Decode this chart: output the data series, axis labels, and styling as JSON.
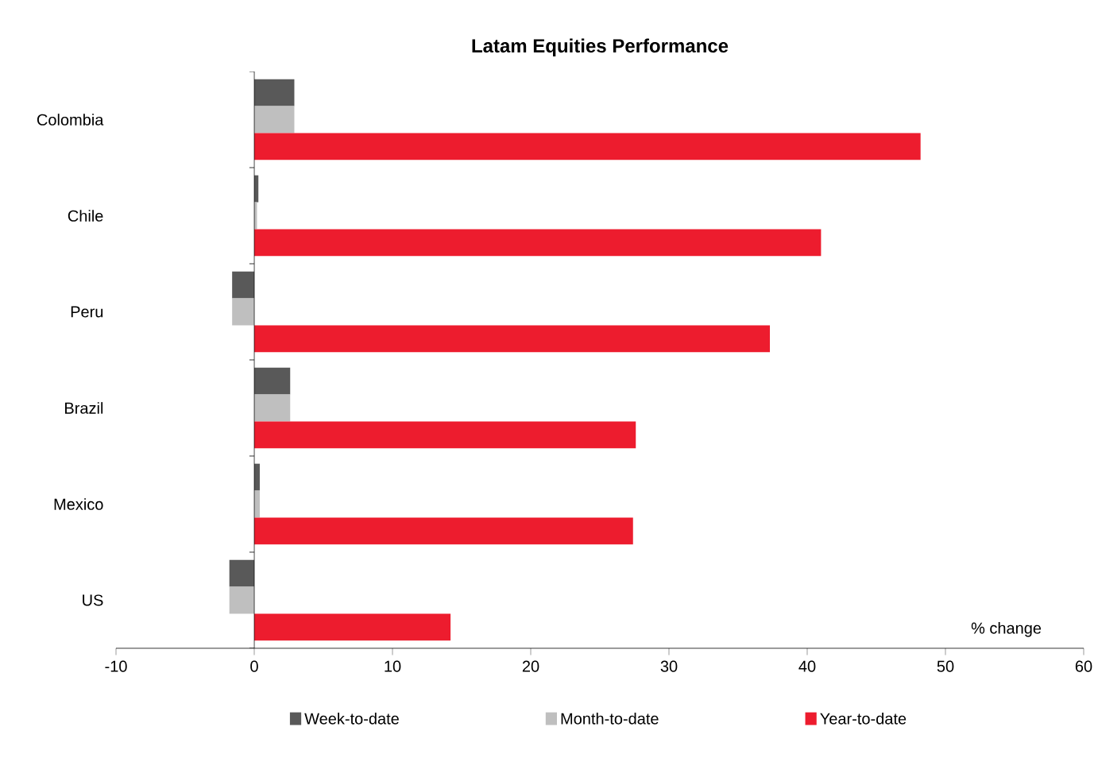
{
  "chart_data": {
    "type": "bar",
    "orientation": "horizontal",
    "title": "Latam Equities Performance",
    "xlabel": "% change",
    "categories": [
      "Colombia",
      "Chile",
      "Peru",
      "Brazil",
      "Mexico",
      "US"
    ],
    "series": [
      {
        "name": "Week-to-date",
        "color": "#595959",
        "values": [
          2.9,
          0.3,
          -1.6,
          2.6,
          0.4,
          -1.8
        ]
      },
      {
        "name": "Month-to-date",
        "color": "#bfbfbf",
        "values": [
          2.9,
          0.2,
          -1.6,
          2.6,
          0.4,
          -1.8
        ]
      },
      {
        "name": "Year-to-date",
        "color": "#ed1c2e",
        "values": [
          48.2,
          41.0,
          37.3,
          27.6,
          27.4,
          14.2
        ]
      }
    ],
    "xlim": [
      -10,
      60
    ],
    "xticks": [
      -10,
      0,
      10,
      20,
      30,
      40,
      50,
      60
    ],
    "legend": "bottom"
  }
}
